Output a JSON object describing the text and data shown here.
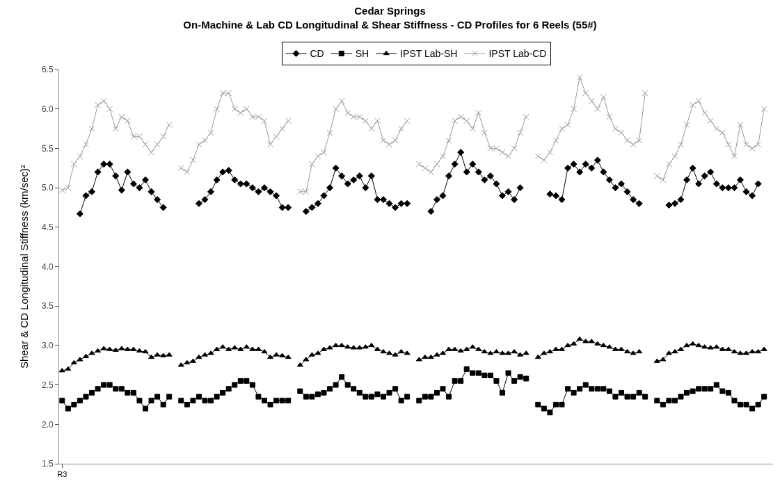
{
  "chart_data": {
    "type": "line",
    "title": "Cedar Springs",
    "subtitle": "On-Machine & Lab CD Longitudinal & Shear Stiffness - CD Profiles for 6 Reels (55#)",
    "ylabel": "Shear & CD Longitudinal Stiffness (km/sec)²",
    "categories": [
      "R3",
      null,
      null,
      null,
      null,
      null,
      null,
      null,
      null,
      null,
      null,
      null,
      null,
      null,
      null,
      null,
      null,
      null,
      null,
      null,
      null,
      null,
      null,
      null,
      null,
      null,
      null,
      null,
      null,
      null,
      null,
      null,
      null,
      null,
      null,
      null,
      null,
      null,
      null,
      null,
      null,
      null,
      null,
      null,
      null,
      null,
      null,
      null,
      null,
      null,
      null,
      null,
      null,
      null,
      null,
      null,
      null,
      null,
      null,
      null,
      null,
      null,
      null,
      null,
      null,
      null,
      null,
      null,
      null,
      null,
      null,
      null,
      null,
      null,
      null,
      null,
      null,
      null,
      null,
      null,
      null,
      null,
      null,
      null,
      null,
      null,
      null,
      null,
      null,
      null,
      null,
      null,
      null,
      null,
      null,
      null,
      null,
      null,
      null,
      null,
      null,
      null,
      null,
      null,
      null,
      null,
      null,
      null,
      null,
      null,
      null,
      null,
      null,
      null,
      null,
      null,
      null,
      null,
      null,
      null
    ],
    "series": [
      {
        "name": "CD",
        "color": "#000000",
        "marker": "diamond",
        "values": [
          null,
          null,
          null,
          4.67,
          4.9,
          4.95,
          5.2,
          5.3,
          5.3,
          5.15,
          4.97,
          5.2,
          5.05,
          5.0,
          5.1,
          4.95,
          4.85,
          4.75,
          null,
          null,
          null,
          null,
          null,
          4.8,
          4.85,
          4.95,
          5.1,
          5.2,
          5.22,
          5.1,
          5.05,
          5.05,
          5.0,
          4.95,
          5.0,
          4.95,
          4.9,
          4.75,
          4.75,
          null,
          null,
          4.7,
          4.75,
          4.8,
          4.9,
          5.0,
          5.25,
          5.15,
          5.05,
          5.1,
          5.15,
          5.0,
          5.15,
          4.85,
          4.85,
          4.8,
          4.75,
          4.8,
          4.8,
          null,
          null,
          null,
          4.7,
          4.85,
          4.9,
          5.15,
          5.3,
          5.45,
          5.2,
          5.3,
          5.2,
          5.1,
          5.15,
          5.05,
          4.9,
          4.95,
          4.85,
          5.0,
          null,
          null,
          null,
          null,
          4.92,
          4.9,
          4.85,
          5.25,
          5.3,
          5.2,
          5.3,
          5.25,
          5.35,
          5.2,
          5.1,
          5.0,
          5.05,
          4.95,
          4.85,
          4.8,
          null,
          null,
          null,
          null,
          4.78,
          4.8,
          4.85,
          5.1,
          5.25,
          5.05,
          5.15,
          5.2,
          5.05,
          5.0,
          5.0,
          5.0,
          5.1,
          4.95,
          4.9,
          5.05,
          null,
          null
        ]
      },
      {
        "name": "SH",
        "color": "#000000",
        "marker": "square",
        "values": [
          2.3,
          2.2,
          2.25,
          2.3,
          2.35,
          2.4,
          2.45,
          2.5,
          2.5,
          2.45,
          2.45,
          2.4,
          2.4,
          2.3,
          2.2,
          2.3,
          2.35,
          2.25,
          2.35,
          null,
          2.3,
          2.25,
          2.3,
          2.35,
          2.3,
          2.3,
          2.35,
          2.4,
          2.45,
          2.5,
          2.55,
          2.55,
          2.5,
          2.35,
          2.3,
          2.25,
          2.3,
          2.3,
          2.3,
          null,
          2.42,
          2.35,
          2.35,
          2.38,
          2.4,
          2.45,
          2.5,
          2.6,
          2.5,
          2.45,
          2.4,
          2.35,
          2.35,
          2.38,
          2.35,
          2.4,
          2.45,
          2.3,
          2.35,
          null,
          2.3,
          2.35,
          2.35,
          2.4,
          2.45,
          2.35,
          2.55,
          2.55,
          2.7,
          2.65,
          2.65,
          2.62,
          2.62,
          2.55,
          2.4,
          2.65,
          2.55,
          2.6,
          2.58,
          null,
          2.25,
          2.2,
          2.15,
          2.25,
          2.25,
          2.45,
          2.4,
          2.45,
          2.5,
          2.45,
          2.45,
          2.45,
          2.42,
          2.35,
          2.4,
          2.35,
          2.35,
          2.4,
          2.35,
          null,
          2.3,
          2.25,
          2.3,
          2.3,
          2.35,
          2.4,
          2.42,
          2.45,
          2.45,
          2.45,
          2.5,
          2.42,
          2.4,
          2.3,
          2.25,
          2.25,
          2.2,
          2.25,
          2.35,
          null
        ]
      },
      {
        "name": "IPST Lab-SH",
        "color": "#000000",
        "marker": "triangle",
        "values": [
          2.68,
          2.7,
          2.78,
          2.82,
          2.86,
          2.9,
          2.93,
          2.96,
          2.95,
          2.94,
          2.96,
          2.95,
          2.95,
          2.93,
          2.92,
          2.85,
          2.88,
          2.87,
          2.88,
          null,
          2.75,
          2.78,
          2.8,
          2.85,
          2.88,
          2.9,
          2.95,
          2.98,
          2.95,
          2.97,
          2.95,
          2.98,
          2.95,
          2.95,
          2.92,
          2.85,
          2.88,
          2.87,
          2.85,
          null,
          2.75,
          2.82,
          2.88,
          2.9,
          2.95,
          2.97,
          3.0,
          3.0,
          2.98,
          2.97,
          2.97,
          2.98,
          3.0,
          2.95,
          2.92,
          2.9,
          2.88,
          2.92,
          2.9,
          null,
          2.82,
          2.85,
          2.85,
          2.88,
          2.9,
          2.95,
          2.95,
          2.93,
          2.95,
          2.98,
          2.95,
          2.92,
          2.9,
          2.92,
          2.9,
          2.9,
          2.92,
          2.88,
          2.9,
          null,
          2.85,
          2.9,
          2.92,
          2.95,
          2.95,
          3.0,
          3.02,
          3.08,
          3.05,
          3.05,
          3.02,
          3.0,
          2.98,
          2.95,
          2.95,
          2.92,
          2.9,
          2.92,
          null,
          null,
          2.8,
          2.82,
          2.9,
          2.92,
          2.95,
          3.0,
          3.02,
          3.0,
          2.98,
          2.97,
          2.98,
          2.95,
          2.95,
          2.92,
          2.9,
          2.9,
          2.92,
          2.92,
          2.95,
          null
        ]
      },
      {
        "name": "IPST Lab-CD",
        "color": "#999999",
        "marker": "cross",
        "values": [
          4.97,
          5.0,
          5.3,
          5.4,
          5.55,
          5.75,
          6.05,
          6.1,
          6.0,
          5.75,
          5.9,
          5.85,
          5.65,
          5.65,
          5.55,
          5.45,
          5.55,
          5.65,
          5.8,
          null,
          5.25,
          5.2,
          5.35,
          5.55,
          5.6,
          5.7,
          6.0,
          6.2,
          6.2,
          6.0,
          5.95,
          6.0,
          5.9,
          5.9,
          5.85,
          5.55,
          5.65,
          5.75,
          5.85,
          null,
          4.95,
          4.95,
          5.3,
          5.4,
          5.45,
          5.7,
          6.0,
          6.1,
          5.95,
          5.9,
          5.9,
          5.85,
          5.75,
          5.85,
          5.6,
          5.55,
          5.6,
          5.75,
          5.85,
          null,
          5.3,
          5.25,
          5.2,
          5.3,
          5.4,
          5.6,
          5.85,
          5.9,
          5.85,
          5.75,
          5.95,
          5.7,
          5.5,
          5.5,
          5.45,
          5.4,
          5.5,
          5.7,
          5.9,
          null,
          5.4,
          5.35,
          5.45,
          5.6,
          5.75,
          5.8,
          6.0,
          6.4,
          6.2,
          6.1,
          6.0,
          6.15,
          5.9,
          5.75,
          5.7,
          5.6,
          5.55,
          5.6,
          6.2,
          null,
          5.15,
          5.1,
          5.3,
          5.4,
          5.55,
          5.8,
          6.05,
          6.1,
          5.95,
          5.85,
          5.75,
          5.7,
          5.55,
          5.4,
          5.8,
          5.55,
          5.5,
          5.55,
          6.0,
          null
        ]
      }
    ],
    "ylim": [
      1.5,
      6.5
    ],
    "yticks": [
      1.5,
      {
        "value": 2,
        "label": "2.0"
      },
      2.5,
      {
        "value": 3,
        "label": "3.0"
      },
      3.5,
      {
        "value": 4,
        "label": "4.0"
      },
      4.5,
      {
        "value": 5,
        "label": "5.0"
      },
      5.5,
      {
        "value": 6,
        "label": "6.0"
      },
      6.5
    ],
    "legend": "top",
    "line_style": "solid"
  }
}
